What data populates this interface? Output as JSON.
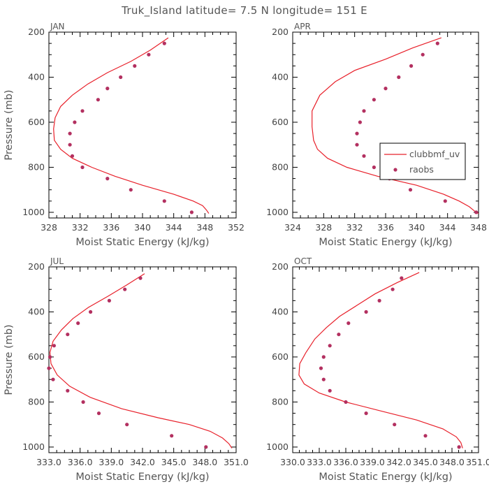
{
  "colors": {
    "model": "#e8202a",
    "obs": "#b33060",
    "text": "#555555"
  },
  "chart_data": {
    "type": "line",
    "title": "Truk_Island  latitude= 7.5 N longitude= 151 E",
    "xlabel": "Moist Static Energy (kJ/kg)",
    "ylabel": "Pressure (mb)",
    "legend": {
      "placement": "right-middle (APR panel)",
      "entries": [
        "clubbmf_uv",
        "raobs"
      ]
    },
    "panels": [
      {
        "label": "JAN",
        "xlim": [
          328,
          352
        ],
        "xticks": [
          328,
          332,
          336,
          340,
          344,
          348,
          352
        ],
        "xticklabels": [
          "328",
          "332",
          "336",
          "340",
          "344",
          "348",
          "352"
        ],
        "ylim": [
          1025,
          200
        ],
        "yticks": [
          200,
          400,
          600,
          800,
          1000
        ],
        "yticklabels": [
          "200",
          "400",
          "600",
          "800",
          "1000"
        ],
        "show_ylabel": true,
        "model": {
          "name": "clubbmf_uv",
          "x": [
            343.3,
            341.0,
            338.5,
            335.5,
            333.0,
            331.0,
            329.5,
            328.8,
            328.6,
            328.7,
            329.5,
            331.0,
            333.5,
            336.5,
            340.0,
            344.0,
            346.5,
            347.7,
            348.2,
            348.5
          ],
          "y": [
            225,
            280,
            330,
            380,
            430,
            480,
            530,
            580,
            630,
            680,
            720,
            760,
            800,
            840,
            880,
            920,
            950,
            970,
            990,
            1005
          ]
        },
        "obs": {
          "name": "raobs",
          "x": [
            342.8,
            340.8,
            339.0,
            337.2,
            335.5,
            334.3,
            332.3,
            331.3,
            330.7,
            330.7,
            331.0,
            332.3,
            335.5,
            338.5,
            342.8,
            346.3
          ],
          "y": [
            250,
            300,
            350,
            400,
            450,
            500,
            550,
            600,
            650,
            700,
            750,
            800,
            850,
            900,
            950,
            1000
          ]
        }
      },
      {
        "label": "APR",
        "xlim": [
          324,
          348
        ],
        "xticks": [
          324,
          328,
          332,
          336,
          340,
          344,
          348
        ],
        "xticklabels": [
          "324",
          "328",
          "332",
          "336",
          "340",
          "344",
          "348"
        ],
        "ylim": [
          1025,
          200
        ],
        "yticks": [
          200,
          400,
          600,
          800,
          1000
        ],
        "yticklabels": [
          "200",
          "400",
          "600",
          "800",
          "1000"
        ],
        "show_ylabel": false,
        "model": {
          "name": "clubbmf_uv",
          "x": [
            343.2,
            339.5,
            336.0,
            332.0,
            329.5,
            327.5,
            326.5,
            326.5,
            326.7,
            327.2,
            328.5,
            331.0,
            335.0,
            340.0,
            343.5,
            345.5,
            346.8,
            347.5,
            348.0
          ],
          "y": [
            225,
            270,
            320,
            370,
            420,
            480,
            550,
            620,
            680,
            720,
            760,
            800,
            840,
            880,
            920,
            950,
            975,
            995,
            1005
          ]
        },
        "obs": {
          "name": "raobs",
          "x": [
            342.7,
            340.8,
            339.3,
            337.7,
            336.0,
            334.5,
            333.2,
            332.7,
            332.3,
            332.3,
            333.2,
            334.5,
            336.5,
            339.2,
            343.7,
            347.7
          ],
          "y": [
            250,
            300,
            350,
            400,
            450,
            500,
            550,
            600,
            650,
            700,
            750,
            800,
            850,
            900,
            950,
            1000
          ]
        }
      },
      {
        "label": "JUL",
        "xlim": [
          333,
          351
        ],
        "xticks": [
          333,
          336,
          339,
          342,
          345,
          348,
          351
        ],
        "xticklabels": [
          "333.0",
          "336.0",
          "339.0",
          "342.0",
          "345.0",
          "348.0",
          "351.0"
        ],
        "ylim": [
          1025,
          200
        ],
        "yticks": [
          200,
          400,
          600,
          800,
          1000
        ],
        "yticklabels": [
          "200",
          "400",
          "600",
          "800",
          "1000"
        ],
        "show_ylabel": true,
        "model": {
          "name": "clubbmf_uv",
          "x": [
            342.2,
            340.5,
            338.7,
            336.8,
            335.3,
            334.2,
            333.4,
            333.1,
            333.2,
            333.8,
            335.0,
            337.0,
            340.0,
            343.5,
            346.5,
            348.5,
            349.7,
            350.3,
            350.6
          ],
          "y": [
            230,
            280,
            330,
            380,
            430,
            480,
            530,
            580,
            630,
            680,
            730,
            780,
            830,
            870,
            900,
            930,
            960,
            985,
            1005
          ]
        },
        "obs": {
          "name": "raobs",
          "x": [
            341.8,
            340.3,
            338.8,
            337.0,
            335.8,
            334.8,
            333.5,
            333.1,
            333.0,
            333.4,
            334.8,
            336.3,
            337.8,
            340.5,
            344.8,
            348.1
          ],
          "y": [
            250,
            300,
            350,
            400,
            450,
            500,
            550,
            600,
            650,
            700,
            750,
            800,
            850,
            900,
            950,
            1000
          ]
        }
      },
      {
        "label": "OCT",
        "xlim": [
          330,
          351
        ],
        "xticks": [
          330,
          333,
          336,
          339,
          342,
          345,
          348,
          351
        ],
        "xticklabels": [
          "330.0",
          "333.0",
          "336.0",
          "339.0",
          "342.0",
          "345.0",
          "348.0",
          "351.0"
        ],
        "ylim": [
          1025,
          200
        ],
        "yticks": [
          200,
          400,
          600,
          800,
          1000
        ],
        "yticklabels": [
          "200",
          "400",
          "600",
          "800",
          "1000"
        ],
        "show_ylabel": false,
        "model": {
          "name": "clubbmf_uv",
          "x": [
            344.3,
            341.8,
            339.3,
            337.3,
            335.3,
            333.8,
            332.5,
            331.5,
            330.8,
            330.7,
            331.3,
            333.0,
            336.0,
            340.0,
            344.0,
            347.0,
            348.5,
            349.0,
            349.2
          ],
          "y": [
            225,
            270,
            320,
            370,
            420,
            470,
            520,
            580,
            630,
            680,
            720,
            760,
            800,
            840,
            880,
            920,
            955,
            980,
            1005
          ]
        },
        "obs": {
          "name": "raobs",
          "x": [
            342.3,
            341.3,
            339.8,
            338.3,
            336.3,
            335.2,
            334.2,
            333.5,
            333.2,
            333.5,
            334.2,
            336.0,
            338.3,
            341.5,
            345.0,
            348.8
          ],
          "y": [
            250,
            300,
            350,
            400,
            450,
            500,
            550,
            600,
            650,
            700,
            750,
            800,
            850,
            900,
            950,
            1000
          ]
        }
      }
    ]
  }
}
